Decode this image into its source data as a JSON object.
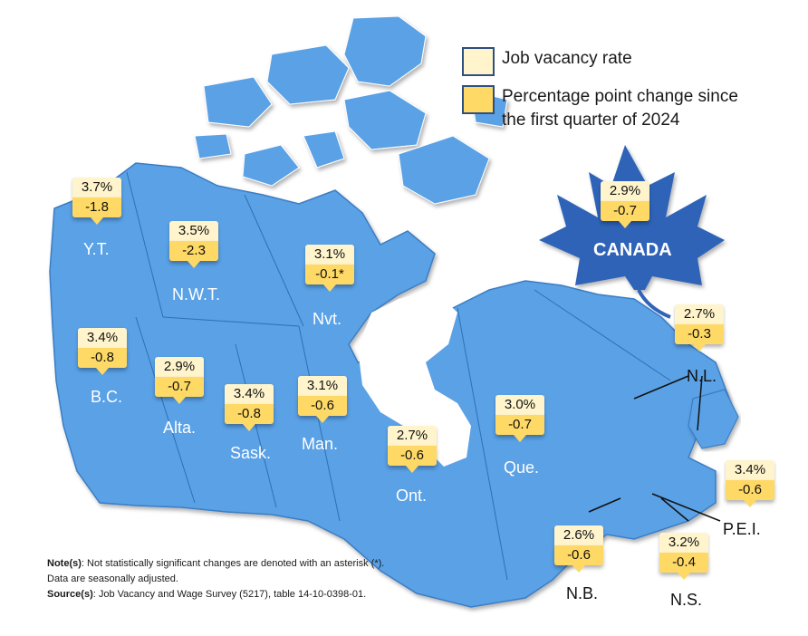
{
  "legend": {
    "job_vacancy_rate": "Job vacancy rate",
    "percentage_point_change_line1": "Percentage point change since",
    "percentage_point_change_line2": "the first quarter of 2024"
  },
  "colors": {
    "land": "#5aa1e6",
    "land_border": "#3b7dc4",
    "maple_leaf": "#2f64b8",
    "rate_box": "#fff4cc",
    "change_box": "#ffd966"
  },
  "canada": {
    "label": "CANADA",
    "rate": "2.9%",
    "change": "-0.7"
  },
  "regions": {
    "yt": {
      "label": "Y.T.",
      "rate": "3.7%",
      "change": "-1.8"
    },
    "nwt": {
      "label": "N.W.T.",
      "rate": "3.5%",
      "change": "-2.3"
    },
    "nvt": {
      "label": "Nvt.",
      "rate": "3.1%",
      "change": "-0.1*"
    },
    "bc": {
      "label": "B.C.",
      "rate": "3.4%",
      "change": "-0.8"
    },
    "alta": {
      "label": "Alta.",
      "rate": "2.9%",
      "change": "-0.7"
    },
    "sask": {
      "label": "Sask.",
      "rate": "3.4%",
      "change": "-0.8"
    },
    "man": {
      "label": "Man.",
      "rate": "3.1%",
      "change": "-0.6"
    },
    "ont": {
      "label": "Ont.",
      "rate": "2.7%",
      "change": "-0.6"
    },
    "que": {
      "label": "Que.",
      "rate": "3.0%",
      "change": "-0.7"
    },
    "nl": {
      "label": "N.L.",
      "rate": "2.7%",
      "change": "-0.3"
    },
    "pei": {
      "label": "P.E.I.",
      "rate": "3.4%",
      "change": "-0.6"
    },
    "nb": {
      "label": "N.B.",
      "rate": "2.6%",
      "change": "-0.6"
    },
    "ns": {
      "label": "N.S.",
      "rate": "3.2%",
      "change": "-0.4"
    }
  },
  "notes": {
    "note_label": "Note(s)",
    "note_text": ": Not statistically significant changes are denoted with an asterisk (*).",
    "note_text2": "Data are seasonally adjusted.",
    "source_label": "Source(s)",
    "source_text": ": Job Vacancy and Wage Survey (5217), table 14-10-0398-01."
  }
}
